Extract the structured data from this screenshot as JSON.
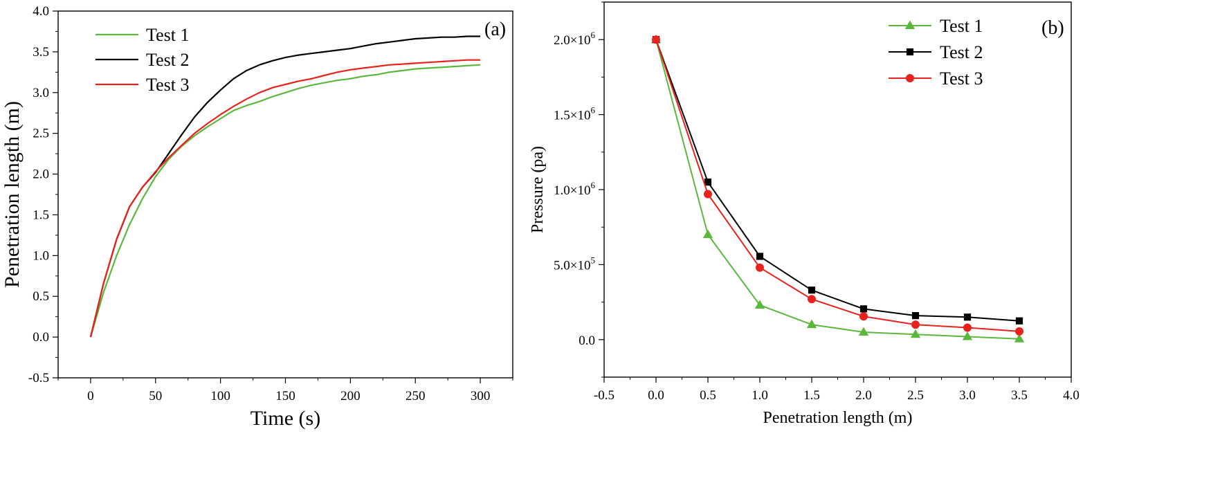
{
  "chart_data": [
    {
      "type": "line",
      "panel_label": "(a)",
      "xlabel": "Time (s)",
      "ylabel": "Penetration length (m)",
      "xlim": [
        -25,
        325
      ],
      "ylim": [
        -0.5,
        4.0
      ],
      "xticks": [
        0,
        50,
        100,
        150,
        200,
        250,
        300
      ],
      "yticks": [
        -0.5,
        0.0,
        0.5,
        1.0,
        1.5,
        2.0,
        2.5,
        3.0,
        3.5,
        4.0
      ],
      "xtick_labels": [
        "0",
        "50",
        "100",
        "150",
        "200",
        "250",
        "300"
      ],
      "ytick_labels": [
        "-0.5",
        "0.0",
        "0.5",
        "1.0",
        "1.5",
        "2.0",
        "2.5",
        "3.0",
        "3.5",
        "4.0"
      ],
      "grid": false,
      "legend_position": "top-left",
      "series": [
        {
          "name": "Test 1",
          "color": "#5cb83c",
          "x": [
            0,
            10,
            20,
            30,
            40,
            50,
            60,
            70,
            80,
            90,
            100,
            110,
            120,
            130,
            140,
            150,
            160,
            170,
            180,
            190,
            200,
            210,
            220,
            230,
            240,
            250,
            260,
            270,
            280,
            290,
            300
          ],
          "y": [
            0.0,
            0.55,
            1.0,
            1.38,
            1.7,
            1.97,
            2.18,
            2.34,
            2.47,
            2.58,
            2.68,
            2.78,
            2.84,
            2.89,
            2.95,
            3.0,
            3.05,
            3.09,
            3.12,
            3.15,
            3.17,
            3.2,
            3.22,
            3.25,
            3.27,
            3.29,
            3.3,
            3.31,
            3.32,
            3.33,
            3.34
          ]
        },
        {
          "name": "Test 2",
          "color": "#000000",
          "x": [
            0,
            10,
            20,
            30,
            40,
            50,
            60,
            70,
            80,
            90,
            100,
            110,
            120,
            130,
            140,
            150,
            160,
            170,
            180,
            190,
            200,
            210,
            220,
            230,
            240,
            250,
            260,
            270,
            280,
            290,
            300
          ],
          "y": [
            0.0,
            0.66,
            1.2,
            1.6,
            1.84,
            2.02,
            2.25,
            2.48,
            2.7,
            2.88,
            3.03,
            3.17,
            3.27,
            3.34,
            3.39,
            3.43,
            3.46,
            3.48,
            3.5,
            3.52,
            3.54,
            3.57,
            3.6,
            3.62,
            3.64,
            3.66,
            3.67,
            3.68,
            3.68,
            3.69,
            3.69
          ]
        },
        {
          "name": "Test 3",
          "color": "#e8221c",
          "x": [
            0,
            10,
            20,
            30,
            40,
            50,
            60,
            70,
            80,
            90,
            100,
            110,
            120,
            130,
            140,
            150,
            160,
            170,
            180,
            190,
            200,
            210,
            220,
            230,
            240,
            250,
            260,
            270,
            280,
            290,
            300
          ],
          "y": [
            0.0,
            0.66,
            1.2,
            1.6,
            1.84,
            2.03,
            2.2,
            2.35,
            2.5,
            2.62,
            2.73,
            2.83,
            2.92,
            3.0,
            3.06,
            3.1,
            3.14,
            3.17,
            3.21,
            3.25,
            3.28,
            3.3,
            3.32,
            3.34,
            3.35,
            3.36,
            3.37,
            3.38,
            3.39,
            3.4,
            3.4
          ]
        }
      ]
    },
    {
      "type": "line",
      "panel_label": "(b)",
      "xlabel": "Penetration length (m)",
      "ylabel": "Pressure (pa)",
      "xlim": [
        -0.5,
        4.0
      ],
      "ylim": [
        -250000,
        2250000
      ],
      "xticks": [
        -0.5,
        0.0,
        0.5,
        1.0,
        1.5,
        2.0,
        2.5,
        3.0,
        3.5,
        4.0
      ],
      "xtick_labels": [
        "-0.5",
        "0.0",
        "0.5",
        "1.0",
        "1.5",
        "2.0",
        "2.5",
        "3.0",
        "3.5",
        "4.0"
      ],
      "yticks": [
        0,
        500000,
        1000000,
        1500000,
        2000000
      ],
      "ytick_labels": [
        {
          "mantissa": "0.0",
          "exponent": ""
        },
        {
          "mantissa": "5.0×10",
          "exponent": "5"
        },
        {
          "mantissa": "1.0×10",
          "exponent": "6"
        },
        {
          "mantissa": "1.5×10",
          "exponent": "6"
        },
        {
          "mantissa": "2.0×10",
          "exponent": "6"
        }
      ],
      "grid": false,
      "legend_position": "top-right",
      "x": [
        0.0,
        0.5,
        1.0,
        1.5,
        2.0,
        2.5,
        3.0,
        3.5
      ],
      "series": [
        {
          "name": "Test 1",
          "color": "#5cb83c",
          "marker": "triangle",
          "values": [
            2000000,
            700000,
            230000,
            100000,
            50000,
            35000,
            20000,
            5000
          ]
        },
        {
          "name": "Test 2",
          "color": "#000000",
          "marker": "square",
          "values": [
            2000000,
            1050000,
            555000,
            330000,
            205000,
            160000,
            150000,
            125000
          ]
        },
        {
          "name": "Test 3",
          "color": "#e8221c",
          "marker": "circle",
          "values": [
            2000000,
            970000,
            480000,
            270000,
            155000,
            100000,
            80000,
            55000
          ]
        }
      ]
    }
  ]
}
